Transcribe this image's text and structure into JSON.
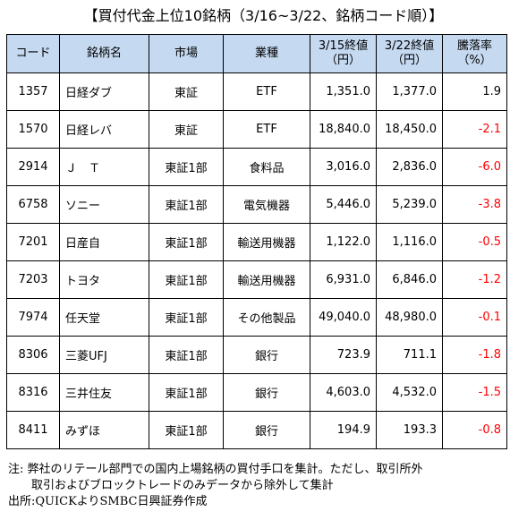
{
  "title": "【買付代金上位10銘柄（3/16~3/22、銘柄コード順）】",
  "table": {
    "headers": {
      "code": "コード",
      "name": "銘柄名",
      "market": "市場",
      "sector": "業種",
      "price1_l1": "3/15終値",
      "price1_l2": "（円）",
      "price2_l1": "3/22終値",
      "price2_l2": "（円）",
      "change_l1": "騰落率",
      "change_l2": "（%）"
    },
    "rows": [
      {
        "code": "1357",
        "name": "日経ダブ",
        "market": "東証",
        "sector": "ETF",
        "p1": "1,351.0",
        "p2": "1,377.0",
        "chg": "1.9",
        "neg": false
      },
      {
        "code": "1570",
        "name": "日経レバ",
        "market": "東証",
        "sector": "ETF",
        "p1": "18,840.0",
        "p2": "18,450.0",
        "chg": "-2.1",
        "neg": true
      },
      {
        "code": "2914",
        "name": "Ｊ　Ｔ",
        "market": "東証1部",
        "sector": "食料品",
        "p1": "3,016.0",
        "p2": "2,836.0",
        "chg": "-6.0",
        "neg": true
      },
      {
        "code": "6758",
        "name": "ソニー",
        "market": "東証1部",
        "sector": "電気機器",
        "p1": "5,446.0",
        "p2": "5,239.0",
        "chg": "-3.8",
        "neg": true
      },
      {
        "code": "7201",
        "name": "日産自",
        "market": "東証1部",
        "sector": "輸送用機器",
        "p1": "1,122.0",
        "p2": "1,116.0",
        "chg": "-0.5",
        "neg": true
      },
      {
        "code": "7203",
        "name": "トヨタ",
        "market": "東証1部",
        "sector": "輸送用機器",
        "p1": "6,931.0",
        "p2": "6,846.0",
        "chg": "-1.2",
        "neg": true
      },
      {
        "code": "7974",
        "name": "任天堂",
        "market": "東証1部",
        "sector": "その他製品",
        "p1": "49,040.0",
        "p2": "48,980.0",
        "chg": "-0.1",
        "neg": true
      },
      {
        "code": "8306",
        "name": "三菱UFJ",
        "market": "東証1部",
        "sector": "銀行",
        "p1": "723.9",
        "p2": "711.1",
        "chg": "-1.8",
        "neg": true
      },
      {
        "code": "8316",
        "name": "三井住友",
        "market": "東証1部",
        "sector": "銀行",
        "p1": "4,603.0",
        "p2": "4,532.0",
        "chg": "-1.5",
        "neg": true
      },
      {
        "code": "8411",
        "name": "みずほ",
        "market": "東証1部",
        "sector": "銀行",
        "p1": "194.9",
        "p2": "193.3",
        "chg": "-0.8",
        "neg": true
      }
    ]
  },
  "notes": {
    "line1": "注: 弊社のリテール部門での国内上場銘柄の買付手口を集計。ただし、取引所外",
    "line2": "　　取引およびブロックトレードのみデータから除外して集計",
    "line3": "出所:QUICKよりSMBC日興証券作成"
  },
  "colors": {
    "header_bg": "#c5d9f1",
    "negative": "#ff0000"
  }
}
